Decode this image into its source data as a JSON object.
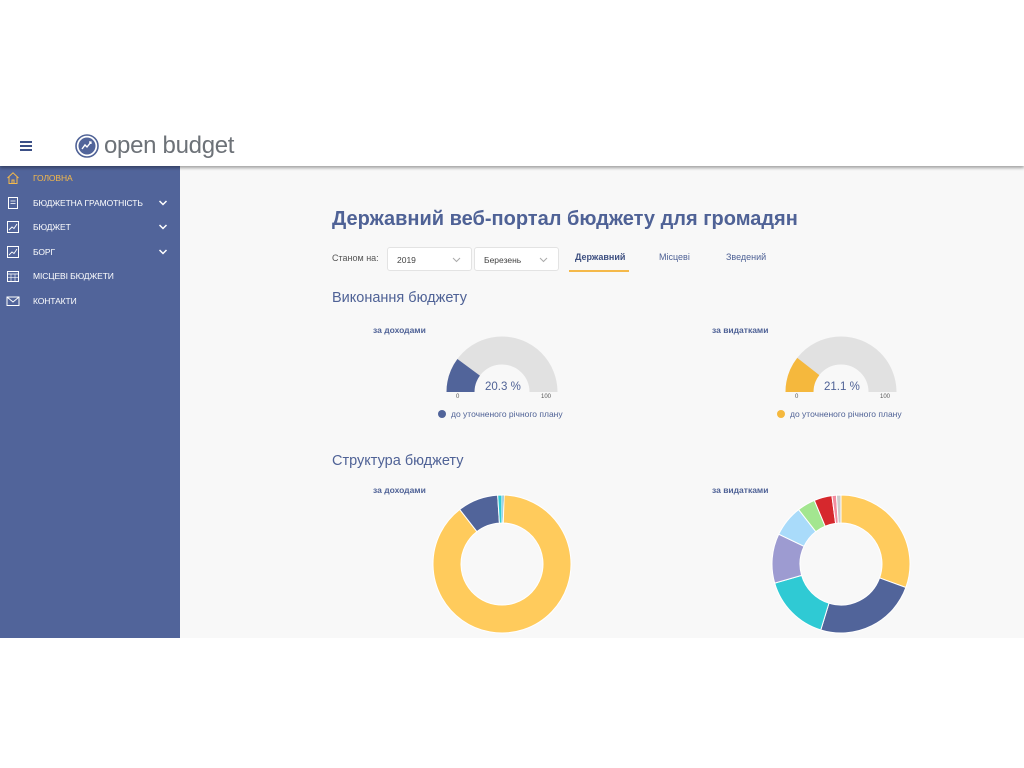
{
  "header": {
    "logo_text": "open budget",
    "menu_icon": "hamburger-icon"
  },
  "sidebar": {
    "items": [
      {
        "label": "ГОЛОВНА",
        "icon": "home-icon",
        "active": true,
        "expandable": false
      },
      {
        "label": "БЮДЖЕТНА ГРАМОТНІСТЬ",
        "icon": "document-icon",
        "active": false,
        "expandable": true
      },
      {
        "label": "БЮДЖЕТ",
        "icon": "chart-icon",
        "active": false,
        "expandable": true
      },
      {
        "label": "БОРГ",
        "icon": "chart-icon",
        "active": false,
        "expandable": true
      },
      {
        "label": "МІСЦЕВІ БЮДЖЕТИ",
        "icon": "calendar-icon",
        "active": false,
        "expandable": false
      },
      {
        "label": "КОНТАКТИ",
        "icon": "mail-icon",
        "active": false,
        "expandable": false
      }
    ]
  },
  "main": {
    "title": "Державний веб-портал бюджету для громадян",
    "filter": {
      "label": "Станом на:",
      "year": "2019",
      "month": "Березень"
    },
    "tabs": [
      {
        "label": "Державний",
        "active": true
      },
      {
        "label": "Місцеві",
        "active": false
      },
      {
        "label": "Зведений",
        "active": false
      }
    ],
    "execution": {
      "title": "Виконання бюджету",
      "income": {
        "label": "за доходами",
        "value": 20.3,
        "value_text": "20.3 %",
        "min": "0",
        "max": "100",
        "color": "#51649a",
        "legend": "до уточненого річного плану"
      },
      "expenses": {
        "label": "за видатками",
        "value": 21.1,
        "value_text": "21.1 %",
        "min": "0",
        "max": "100",
        "color": "#f5b83d",
        "legend": "до уточненого річного плану"
      }
    },
    "structure": {
      "title": "Структура бюджету",
      "income": {
        "label": "за доходами",
        "segments": [
          {
            "value": 0.5,
            "color": "#4aa3c9"
          },
          {
            "value": 89.0,
            "color": "#ffcb5c"
          },
          {
            "value": 9.5,
            "color": "#51649a"
          },
          {
            "value": 1.0,
            "color": "#2fcad4"
          }
        ]
      },
      "expenses": {
        "label": "за видатками",
        "segments": [
          {
            "value": 29,
            "color": "#ffcb5c"
          },
          {
            "value": 23,
            "color": "#51649a"
          },
          {
            "value": 15,
            "color": "#2fcad4"
          },
          {
            "value": 11,
            "color": "#9d9bd1"
          },
          {
            "value": 7,
            "color": "#a9dbfa"
          },
          {
            "value": 4,
            "color": "#a3e690"
          },
          {
            "value": 4,
            "color": "#d6282d"
          },
          {
            "value": 1,
            "color": "#f28ea0"
          },
          {
            "value": 1,
            "color": "#cccccc"
          }
        ]
      }
    }
  }
}
